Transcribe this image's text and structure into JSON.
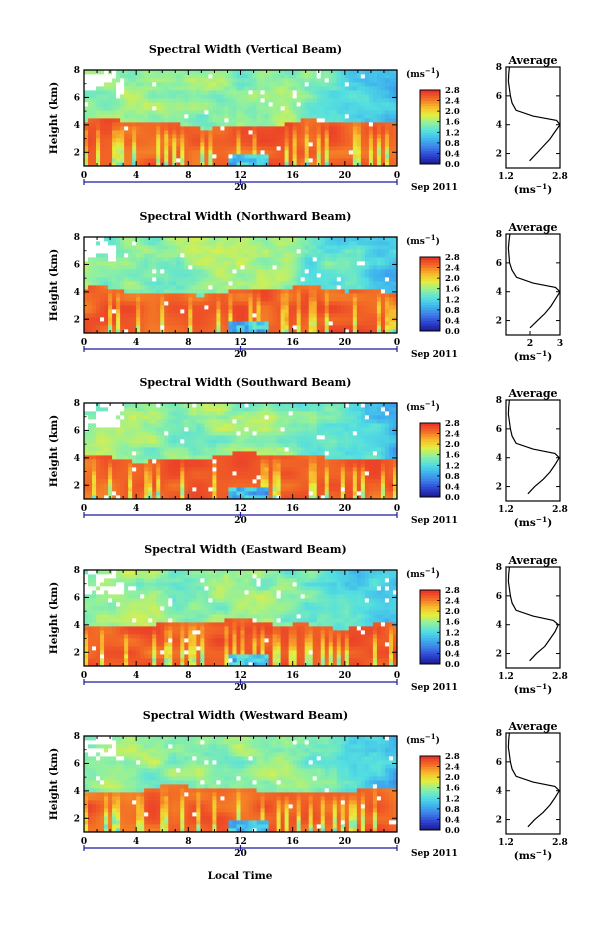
{
  "figure": {
    "panel_titles": [
      "Spectral Width (Vertical Beam)",
      "Spectral Width (Northward Beam)",
      "Spectral Width (Southward Beam)",
      "Spectral Width (Eastward Beam)",
      "Spectral Width (Westward Beam)"
    ],
    "avg_title": "Average",
    "units_label": "(ms",
    "units_exp": "−1",
    "units_close": ")",
    "ylabel": "Height (km)",
    "date_day": "20",
    "date_label": "Sep 2011",
    "xlabel": "Local Time",
    "x_ticks": [
      "0",
      "4",
      "8",
      "12",
      "16",
      "20",
      "0"
    ],
    "y_ticks": [
      "2",
      "4",
      "6",
      "8"
    ],
    "cb_ticks": [
      "0.0",
      "0.4",
      "0.8",
      "1.2",
      "1.6",
      "2.0",
      "2.4",
      "2.8"
    ],
    "colors": {
      "ramp": [
        "#1a1a8a",
        "#2d3fd0",
        "#3d7de8",
        "#3fb4ee",
        "#54dfe0",
        "#8ff0a0",
        "#e6ef3c",
        "#f8b82c",
        "#f26a25",
        "#e8302a"
      ],
      "missing": "#ffffff",
      "axis": "#000000",
      "date_axis": "#1a1aa0"
    }
  },
  "chart_data": [
    {
      "type": "heatmap",
      "beam": "Vertical",
      "title": "Spectral Width (Vertical Beam)",
      "xlabel": "Local Time",
      "ylabel": "Height (km)",
      "x_range_hours": [
        0,
        24
      ],
      "ylim": [
        1,
        8
      ],
      "value_range": [
        0,
        2.8
      ],
      "units": "ms^-1",
      "average_profile": {
        "x_ticks": [
          "1.2",
          "2.8"
        ],
        "xlim": [
          1.2,
          2.8
        ],
        "ylim": [
          1,
          8
        ],
        "heights": [
          1.5,
          2.0,
          2.5,
          3.0,
          3.5,
          4.0,
          4.3,
          4.6,
          5.0,
          5.5,
          6.0,
          6.5,
          7.0,
          7.5,
          8.0
        ],
        "values": [
          1.9,
          2.1,
          2.3,
          2.5,
          2.65,
          2.8,
          2.7,
          2.0,
          1.5,
          1.38,
          1.33,
          1.3,
          1.27,
          1.28,
          1.3
        ]
      }
    },
    {
      "type": "heatmap",
      "beam": "Northward",
      "title": "Spectral Width (Northward Beam)",
      "xlabel": "Local Time",
      "ylabel": "Height (km)",
      "x_range_hours": [
        0,
        24
      ],
      "ylim": [
        1,
        8
      ],
      "value_range": [
        0,
        2.8
      ],
      "units": "ms^-1",
      "average_profile": {
        "x_ticks": [
          "2",
          "3"
        ],
        "xlim": [
          1.2,
          3.0
        ],
        "ylim": [
          1,
          8
        ],
        "heights": [
          1.5,
          2.0,
          2.5,
          3.0,
          3.5,
          4.0,
          4.3,
          4.6,
          5.0,
          5.5,
          6.0,
          6.5,
          7.0,
          7.5,
          8.0
        ],
        "values": [
          2.0,
          2.25,
          2.5,
          2.7,
          2.85,
          3.0,
          2.85,
          2.1,
          1.55,
          1.4,
          1.32,
          1.3,
          1.28,
          1.3,
          1.33
        ]
      }
    },
    {
      "type": "heatmap",
      "beam": "Southward",
      "title": "Spectral Width (Southward Beam)",
      "xlabel": "Local Time",
      "ylabel": "Height (km)",
      "x_range_hours": [
        0,
        24
      ],
      "ylim": [
        1,
        8
      ],
      "value_range": [
        0,
        2.8
      ],
      "units": "ms^-1",
      "average_profile": {
        "x_ticks": [
          "1.2",
          "2.8"
        ],
        "xlim": [
          1.2,
          2.8
        ],
        "ylim": [
          1,
          8
        ],
        "heights": [
          1.5,
          2.0,
          2.5,
          3.0,
          3.5,
          4.0,
          4.3,
          4.6,
          5.0,
          5.5,
          6.0,
          6.5,
          7.0,
          7.5,
          8.0
        ],
        "values": [
          1.85,
          2.05,
          2.3,
          2.5,
          2.65,
          2.78,
          2.65,
          2.0,
          1.5,
          1.38,
          1.33,
          1.3,
          1.27,
          1.28,
          1.3
        ]
      }
    },
    {
      "type": "heatmap",
      "beam": "Eastward",
      "title": "Spectral Width (Eastward Beam)",
      "xlabel": "Local Time",
      "ylabel": "Height (km)",
      "x_range_hours": [
        0,
        24
      ],
      "ylim": [
        1,
        8
      ],
      "value_range": [
        0,
        2.8
      ],
      "units": "ms^-1",
      "average_profile": {
        "x_ticks": [
          "1.2",
          "2.8"
        ],
        "xlim": [
          1.2,
          2.8
        ],
        "ylim": [
          1,
          8
        ],
        "heights": [
          1.5,
          2.0,
          2.5,
          3.0,
          3.5,
          4.0,
          4.3,
          4.6,
          5.0,
          5.5,
          6.0,
          6.5,
          7.0,
          7.5,
          8.0
        ],
        "values": [
          1.9,
          2.1,
          2.35,
          2.5,
          2.65,
          2.75,
          2.6,
          2.0,
          1.5,
          1.38,
          1.33,
          1.3,
          1.27,
          1.28,
          1.3
        ]
      }
    },
    {
      "type": "heatmap",
      "beam": "Westward",
      "title": "Spectral Width (Westward Beam)",
      "xlabel": "Local Time",
      "ylabel": "Height (km)",
      "x_range_hours": [
        0,
        24
      ],
      "ylim": [
        1,
        8
      ],
      "value_range": [
        0,
        2.8
      ],
      "units": "ms^-1",
      "average_profile": {
        "x_ticks": [
          "1.2",
          "2.8"
        ],
        "xlim": [
          1.2,
          2.8
        ],
        "ylim": [
          1,
          8
        ],
        "heights": [
          1.5,
          2.0,
          2.5,
          3.0,
          3.5,
          4.0,
          4.3,
          4.6,
          5.0,
          5.5,
          6.0,
          6.5,
          7.0,
          7.5,
          8.0
        ],
        "values": [
          1.85,
          2.05,
          2.3,
          2.5,
          2.65,
          2.78,
          2.65,
          2.0,
          1.5,
          1.38,
          1.33,
          1.3,
          1.27,
          1.28,
          1.3
        ]
      }
    }
  ]
}
